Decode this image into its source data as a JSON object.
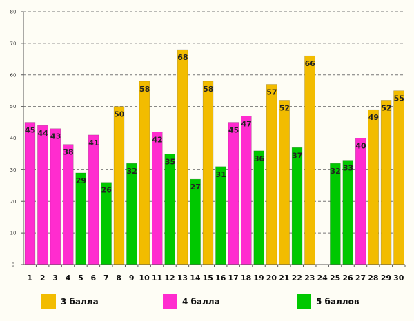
{
  "chart_data": {
    "type": "bar",
    "title": "",
    "xlabel": "",
    "ylabel": "",
    "ylim": [
      0,
      80
    ],
    "yticks": [
      "0",
      "10",
      "20",
      "30",
      "40",
      "50",
      "60",
      "70",
      "80"
    ],
    "grid": true,
    "legend_position": "bottom",
    "categories": [
      "1",
      "2",
      "3",
      "4",
      "5",
      "6",
      "7",
      "8",
      "9",
      "10",
      "11",
      "12",
      "13",
      "14",
      "15",
      "16",
      "17",
      "18",
      "19",
      "20",
      "21",
      "22",
      "23",
      "24",
      "25",
      "26",
      "27",
      "28",
      "29",
      "30"
    ],
    "values": [
      45,
      44,
      43,
      38,
      29,
      41,
      26,
      50,
      32,
      58,
      42,
      35,
      68,
      27,
      58,
      31,
      45,
      47,
      36,
      57,
      52,
      37,
      66,
      null,
      32,
      33,
      40,
      49,
      52,
      55
    ],
    "groups": [
      1,
      1,
      1,
      1,
      2,
      1,
      2,
      0,
      2,
      0,
      1,
      2,
      0,
      2,
      0,
      2,
      1,
      1,
      2,
      0,
      0,
      2,
      0,
      null,
      2,
      2,
      1,
      0,
      0,
      0
    ],
    "legend": [
      {
        "label": "3 балла",
        "color": "#f2bc00"
      },
      {
        "label": "4 балла",
        "color": "#ff2ccf"
      },
      {
        "label": "5 баллов",
        "color": "#00c800"
      }
    ]
  }
}
